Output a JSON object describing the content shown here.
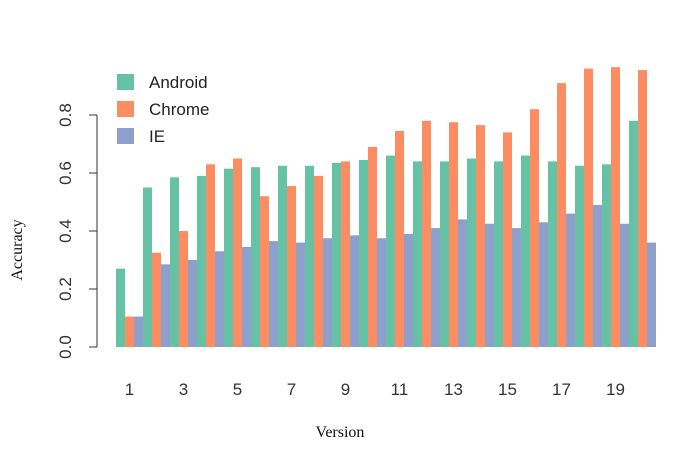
{
  "chart_data": {
    "type": "bar",
    "xlabel": "Version",
    "ylabel": "Accuracy",
    "categories": [
      "1",
      "2",
      "3",
      "4",
      "5",
      "6",
      "7",
      "8",
      "9",
      "10",
      "11",
      "12",
      "13",
      "14",
      "15",
      "16",
      "17",
      "18",
      "19",
      "20"
    ],
    "x_tick_labels": [
      "1",
      "3",
      "5",
      "7",
      "9",
      "11",
      "13",
      "15",
      "17",
      "19"
    ],
    "y_ticks": [
      "0.0",
      "0.2",
      "0.4",
      "0.6",
      "0.8"
    ],
    "ylim": [
      0,
      0.97
    ],
    "grid": false,
    "legend_position": "top-left",
    "series": [
      {
        "name": "Android",
        "color": "#66c2a5",
        "values": [
          0.27,
          0.55,
          0.585,
          0.59,
          0.615,
          0.62,
          0.625,
          0.625,
          0.635,
          0.645,
          0.66,
          0.64,
          0.64,
          0.65,
          0.64,
          0.66,
          0.64,
          0.625,
          0.63,
          0.78
        ]
      },
      {
        "name": "Chrome",
        "color": "#fc8d62",
        "values": [
          0.105,
          0.325,
          0.4,
          0.63,
          0.65,
          0.52,
          0.555,
          0.59,
          0.64,
          0.69,
          0.745,
          0.78,
          0.775,
          0.765,
          0.74,
          0.82,
          0.91,
          0.96,
          0.965,
          0.955
        ]
      },
      {
        "name": "IE",
        "color": "#8da0cb",
        "values": [
          0.105,
          0.285,
          0.3,
          0.33,
          0.345,
          0.365,
          0.36,
          0.375,
          0.385,
          0.375,
          0.39,
          0.41,
          0.44,
          0.425,
          0.41,
          0.43,
          0.46,
          0.49,
          0.425,
          0.36
        ]
      }
    ]
  }
}
